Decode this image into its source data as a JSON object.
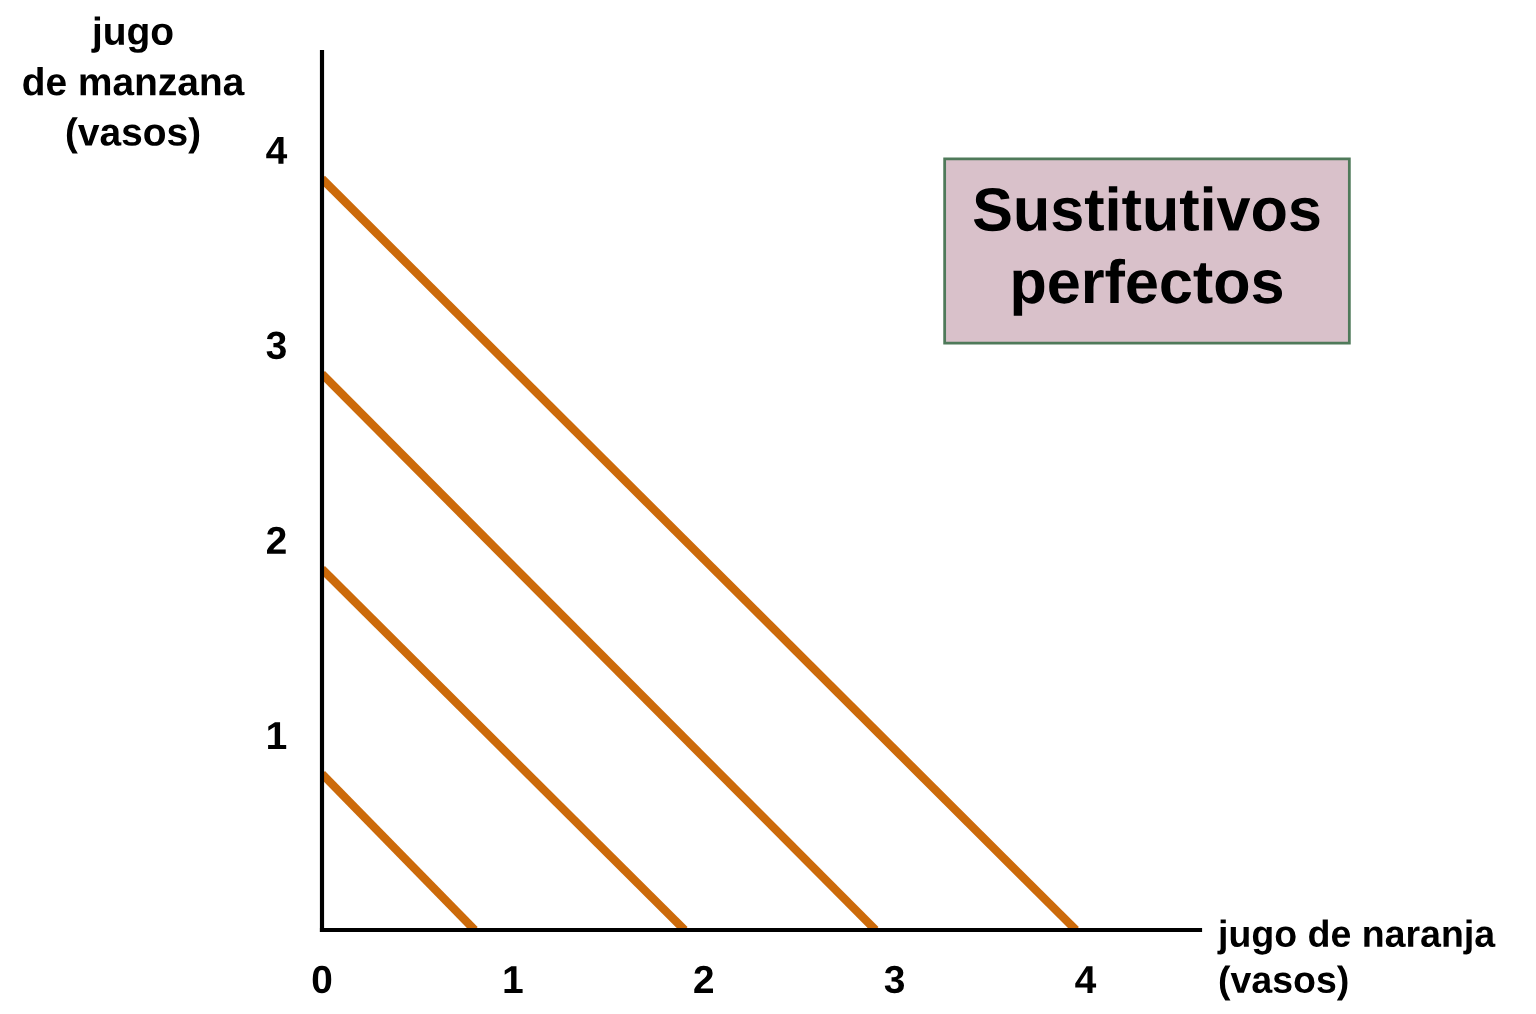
{
  "chart_data": {
    "type": "line",
    "xlabel": "jugo de naranja\n(vasos)",
    "ylabel": "jugo\nde manzana\n(vasos)",
    "annotations": [
      "Sustitutivos\nperfectos"
    ],
    "series": [
      {
        "color": "#cc6a0a",
        "x": [
          0,
          0.8
        ],
        "values": [
          0.8,
          0
        ]
      },
      {
        "color": "#cc6a0a",
        "x": [
          0,
          1.9
        ],
        "values": [
          1.85,
          0
        ]
      },
      {
        "color": "#cc6a0a",
        "x": [
          0,
          2.9
        ],
        "values": [
          2.85,
          0
        ]
      },
      {
        "color": "#cc6a0a",
        "x": [
          0,
          3.95
        ],
        "values": [
          3.85,
          0
        ]
      }
    ],
    "xlim": [
      0,
      4.6
    ],
    "ylim": [
      0,
      4.5
    ],
    "xticks": [
      {
        "value": 0,
        "label": "0"
      },
      1,
      2,
      3,
      4
    ],
    "yticks": [
      1,
      2,
      3,
      4
    ],
    "grid": false,
    "legend": false,
    "marker": "none",
    "line_style": "solid"
  }
}
